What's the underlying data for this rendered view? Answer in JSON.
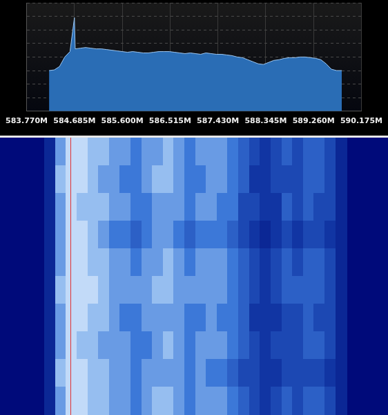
{
  "chart_data": [
    {
      "type": "line",
      "x": [
        584.2,
        584.3,
        584.4,
        584.5,
        584.6,
        584.685,
        584.7,
        584.8,
        584.9,
        585.0,
        585.1,
        585.2,
        585.3,
        585.4,
        585.5,
        585.6,
        585.7,
        585.8,
        585.9,
        586.0,
        586.1,
        586.2,
        586.3,
        586.4,
        586.5,
        586.6,
        586.7,
        586.8,
        586.9,
        587.0,
        587.1,
        587.2,
        587.3,
        587.4,
        587.5,
        587.6,
        587.7,
        587.8,
        587.9,
        588.0,
        588.1,
        588.2,
        588.3,
        588.4,
        588.5,
        588.6,
        588.7,
        588.8,
        588.9,
        589.0,
        589.1,
        589.2,
        589.3,
        589.4,
        589.5,
        589.6,
        589.7,
        589.8
      ],
      "values": [
        3.0,
        3.05,
        3.3,
        4.0,
        4.4,
        6.9,
        4.6,
        4.65,
        4.7,
        4.65,
        4.6,
        4.6,
        4.55,
        4.5,
        4.45,
        4.4,
        4.35,
        4.4,
        4.35,
        4.3,
        4.3,
        4.35,
        4.4,
        4.4,
        4.4,
        4.35,
        4.3,
        4.25,
        4.3,
        4.25,
        4.2,
        4.3,
        4.25,
        4.2,
        4.2,
        4.15,
        4.1,
        4.0,
        3.95,
        3.8,
        3.65,
        3.5,
        3.45,
        3.6,
        3.75,
        3.8,
        3.9,
        3.95,
        3.95,
        4.0,
        4.0,
        3.95,
        3.9,
        3.8,
        3.5,
        3.1,
        3.0,
        3.0
      ],
      "color": "#2a6db5",
      "xlim": [
        583.77,
        590.175
      ],
      "xticks": [
        {
          "value": 583.77,
          "label": "583.770M"
        },
        {
          "value": 584.685,
          "label": "584.685M"
        },
        {
          "value": 585.6,
          "label": "585.600M"
        },
        {
          "value": 586.515,
          "label": "586.515M"
        },
        {
          "value": 587.43,
          "label": "587.430M"
        },
        {
          "value": 588.345,
          "label": "588.345M"
        },
        {
          "value": 589.26,
          "label": "589.260M"
        },
        {
          "value": 590.175,
          "label": "590.175M"
        }
      ],
      "ylim": [
        0,
        8
      ],
      "yticks": [
        0,
        1,
        2,
        3,
        4,
        5,
        6,
        7,
        8
      ],
      "grid": true,
      "tick_labels": "x"
    },
    {
      "type": "heatmap",
      "xlim": [
        583.77,
        590.175
      ],
      "bins": [
        584.2,
        584.4,
        584.6,
        584.8,
        585.0,
        585.2,
        585.4,
        585.6,
        585.8,
        586.0,
        586.2,
        586.4,
        586.6,
        586.8,
        587.0,
        587.2,
        587.4,
        587.6,
        587.8,
        588.0,
        588.2,
        588.4,
        588.6,
        588.8,
        589.0,
        589.2,
        589.4,
        589.6,
        589.8
      ],
      "cells": [
        [
          2,
          7,
          9,
          9,
          8,
          8,
          7,
          7,
          6,
          7,
          7,
          8,
          7,
          6,
          7,
          7,
          7,
          6,
          5,
          4,
          3,
          4,
          5,
          4,
          5,
          5,
          4,
          2
        ],
        [
          2,
          8,
          9,
          9,
          8,
          7,
          7,
          6,
          6,
          7,
          8,
          8,
          7,
          6,
          6,
          7,
          7,
          6,
          5,
          3,
          3,
          4,
          4,
          4,
          5,
          5,
          4,
          2
        ],
        [
          2,
          7,
          9,
          8,
          8,
          8,
          7,
          7,
          6,
          6,
          7,
          7,
          7,
          6,
          7,
          7,
          6,
          6,
          4,
          4,
          3,
          3,
          5,
          4,
          5,
          4,
          4,
          2
        ],
        [
          2,
          7,
          9,
          9,
          8,
          7,
          6,
          6,
          5,
          6,
          7,
          7,
          6,
          5,
          6,
          6,
          6,
          5,
          4,
          3,
          2,
          3,
          4,
          3,
          4,
          4,
          3,
          2
        ],
        [
          2,
          7,
          9,
          9,
          8,
          8,
          7,
          7,
          6,
          7,
          7,
          8,
          7,
          6,
          7,
          7,
          7,
          6,
          5,
          4,
          3,
          4,
          5,
          4,
          5,
          5,
          4,
          2
        ],
        [
          2,
          8,
          9,
          9,
          9,
          8,
          7,
          7,
          7,
          7,
          8,
          8,
          7,
          7,
          7,
          7,
          7,
          6,
          5,
          4,
          3,
          4,
          5,
          5,
          5,
          5,
          4,
          2
        ],
        [
          2,
          7,
          9,
          9,
          8,
          8,
          7,
          6,
          6,
          7,
          7,
          7,
          7,
          6,
          6,
          7,
          6,
          6,
          5,
          3,
          3,
          3,
          4,
          4,
          5,
          4,
          4,
          2
        ],
        [
          2,
          7,
          9,
          8,
          8,
          7,
          7,
          7,
          6,
          6,
          7,
          8,
          7,
          6,
          7,
          7,
          7,
          6,
          5,
          4,
          3,
          4,
          4,
          4,
          5,
          5,
          4,
          2
        ],
        [
          2,
          8,
          9,
          9,
          8,
          8,
          7,
          7,
          6,
          7,
          7,
          7,
          7,
          6,
          7,
          6,
          6,
          5,
          4,
          4,
          3,
          3,
          4,
          4,
          4,
          4,
          3,
          2
        ],
        [
          2,
          7,
          9,
          9,
          8,
          8,
          7,
          7,
          6,
          7,
          8,
          8,
          7,
          6,
          7,
          7,
          7,
          6,
          5,
          4,
          3,
          4,
          5,
          4,
          5,
          5,
          4,
          2
        ]
      ],
      "zlim": [
        0,
        10
      ],
      "cursor": 584.685,
      "tick_labels": false
    }
  ]
}
